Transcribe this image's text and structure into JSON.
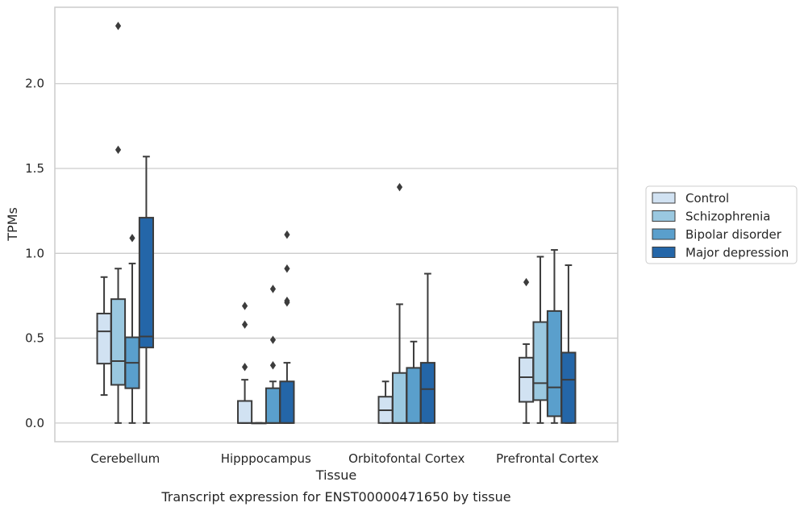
{
  "caption": "Transcript expression for ENST00000471650 by tissue",
  "chart_data": {
    "type": "box",
    "xlabel": "Tissue",
    "ylabel": "TPMs",
    "ylim": [
      -0.11,
      2.45
    ],
    "yticks": [
      "0.0",
      "0.5",
      "1.0",
      "1.5",
      "2.0"
    ],
    "grid": "horizontal",
    "legend_placement": "outside-right",
    "categories": [
      "Cerebellum",
      "Hipppocampus",
      "Orbitofontal Cortex",
      "Prefrontal Cortex"
    ],
    "series": [
      {
        "name": "Control",
        "color": "#d1e2f2",
        "boxes": [
          {
            "whislo": 0.165,
            "q1": 0.35,
            "med": 0.54,
            "q3": 0.645,
            "whishi": 0.86,
            "fliers": []
          },
          {
            "whislo": 0.0,
            "q1": 0.0,
            "med": 0.0,
            "q3": 0.13,
            "whishi": 0.255,
            "fliers": [
              0.33,
              0.58,
              0.69
            ]
          },
          {
            "whislo": 0.0,
            "q1": 0.0,
            "med": 0.075,
            "q3": 0.155,
            "whishi": 0.245,
            "fliers": []
          },
          {
            "whislo": 0.0,
            "q1": 0.125,
            "med": 0.27,
            "q3": 0.385,
            "whishi": 0.465,
            "fliers": [
              0.83
            ]
          }
        ]
      },
      {
        "name": "Schizophrenia",
        "color": "#9ac8e0",
        "boxes": [
          {
            "whislo": 0.0,
            "q1": 0.225,
            "med": 0.365,
            "q3": 0.73,
            "whishi": 0.91,
            "fliers": [
              1.61,
              2.34
            ]
          },
          {
            "whislo": 0.0,
            "q1": 0.0,
            "med": 0.0,
            "q3": 0.0,
            "whishi": 0.0,
            "fliers": []
          },
          {
            "whislo": 0.0,
            "q1": 0.0,
            "med": 0.0,
            "q3": 0.295,
            "whishi": 0.7,
            "fliers": [
              1.39
            ]
          },
          {
            "whislo": 0.0,
            "q1": 0.135,
            "med": 0.235,
            "q3": 0.595,
            "whishi": 0.98,
            "fliers": []
          }
        ]
      },
      {
        "name": "Bipolar disorder",
        "color": "#5a9fcc",
        "boxes": [
          {
            "whislo": 0.0,
            "q1": 0.205,
            "med": 0.355,
            "q3": 0.505,
            "whishi": 0.94,
            "fliers": [
              1.09
            ]
          },
          {
            "whislo": 0.0,
            "q1": 0.0,
            "med": 0.0,
            "q3": 0.205,
            "whishi": 0.245,
            "fliers": [
              0.34,
              0.49,
              0.79
            ]
          },
          {
            "whislo": 0.0,
            "q1": 0.0,
            "med": 0.0,
            "q3": 0.325,
            "whishi": 0.48,
            "fliers": []
          },
          {
            "whislo": 0.0,
            "q1": 0.04,
            "med": 0.21,
            "q3": 0.66,
            "whishi": 1.02,
            "fliers": []
          }
        ]
      },
      {
        "name": "Major depression",
        "color": "#2466a8",
        "boxes": [
          {
            "whislo": 0.0,
            "q1": 0.445,
            "med": 0.51,
            "q3": 1.21,
            "whishi": 1.57,
            "fliers": []
          },
          {
            "whislo": 0.0,
            "q1": 0.0,
            "med": 0.0,
            "q3": 0.245,
            "whishi": 0.355,
            "fliers": [
              0.71,
              0.91,
              1.11
            ]
          },
          {
            "whislo": 0.0,
            "q1": 0.0,
            "med": 0.2,
            "q3": 0.355,
            "whishi": 0.88,
            "fliers": []
          },
          {
            "whislo": 0.0,
            "q1": 0.0,
            "med": 0.255,
            "q3": 0.415,
            "whishi": 0.93,
            "fliers": []
          }
        ]
      }
    ],
    "extra_fliers": [
      {
        "category": 1,
        "series": 3,
        "value": 0.72
      }
    ]
  }
}
